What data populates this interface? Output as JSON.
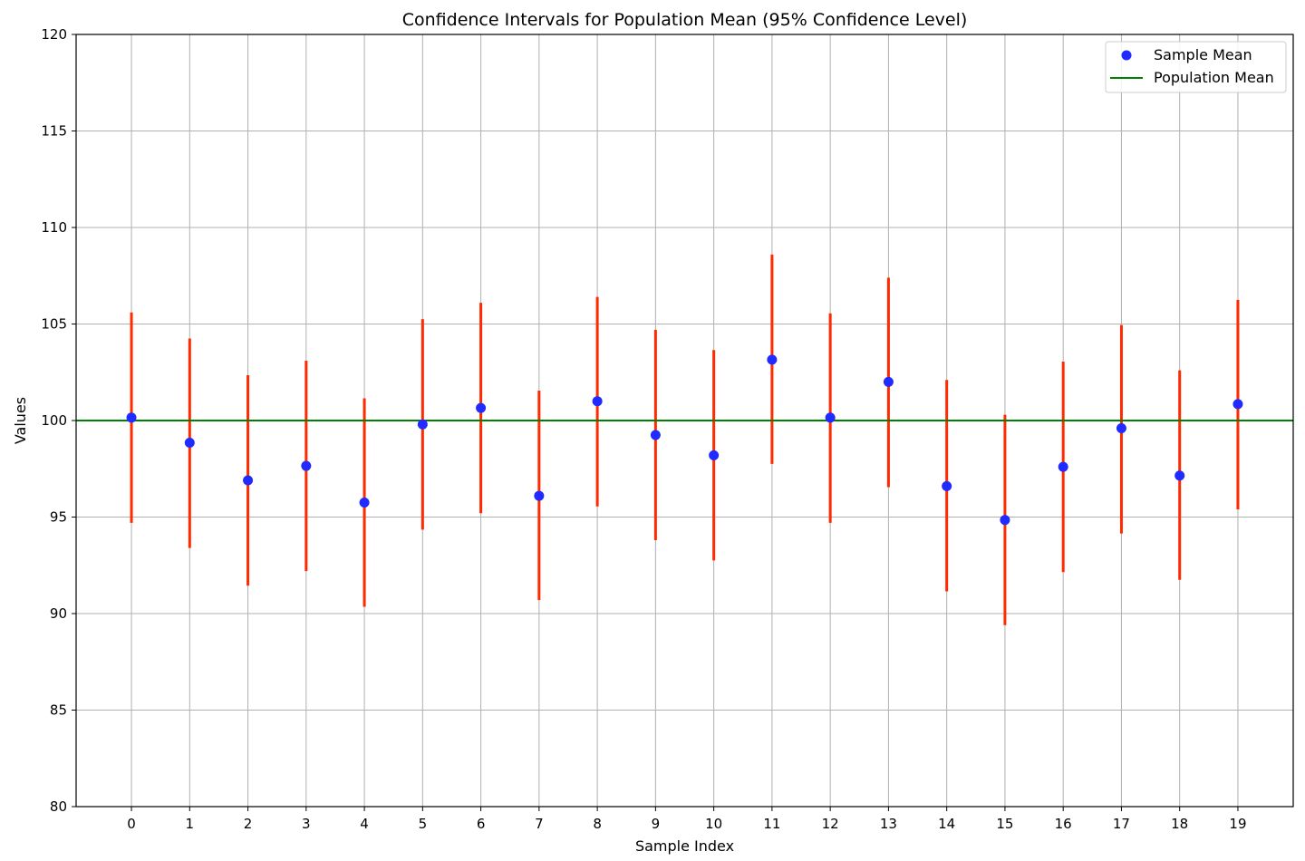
{
  "chart_data": {
    "type": "scatter",
    "title": "Confidence Intervals for Population Mean (95% Confidence Level)",
    "xlabel": "Sample Index",
    "ylabel": "Values",
    "xlim": [
      -0.95,
      19.95
    ],
    "ylim": [
      80,
      120
    ],
    "x_ticks": [
      0,
      1,
      2,
      3,
      4,
      5,
      6,
      7,
      8,
      9,
      10,
      11,
      12,
      13,
      14,
      15,
      16,
      17,
      18,
      19
    ],
    "y_ticks": [
      80,
      85,
      90,
      95,
      100,
      105,
      110,
      115,
      120
    ],
    "grid": true,
    "legend_position": "top-right",
    "x": [
      0,
      1,
      2,
      3,
      4,
      5,
      6,
      7,
      8,
      9,
      10,
      11,
      12,
      13,
      14,
      15,
      16,
      17,
      18,
      19
    ],
    "series": [
      {
        "name": "Sample Mean",
        "kind": "point",
        "color": "#1f2bff",
        "values": [
          100.15,
          98.85,
          96.9,
          97.65,
          95.75,
          99.8,
          100.65,
          96.1,
          101.0,
          99.25,
          98.2,
          103.15,
          100.15,
          102.0,
          96.6,
          94.85,
          97.6,
          99.6,
          97.15,
          100.85
        ]
      },
      {
        "name": "Population Mean",
        "kind": "hline",
        "color": "#008000",
        "value": 100
      }
    ],
    "intervals": {
      "color": "#ff2a00",
      "lower": [
        94.7,
        93.4,
        91.45,
        92.2,
        90.35,
        94.35,
        95.2,
        90.7,
        95.55,
        93.8,
        92.75,
        97.75,
        94.7,
        96.55,
        91.15,
        89.4,
        92.15,
        94.15,
        91.75,
        95.4
      ],
      "upper": [
        105.6,
        104.25,
        102.35,
        103.1,
        101.15,
        105.25,
        106.1,
        101.55,
        106.4,
        104.7,
        103.65,
        108.6,
        105.55,
        107.4,
        102.1,
        100.3,
        103.05,
        104.95,
        102.6,
        106.25
      ]
    }
  }
}
